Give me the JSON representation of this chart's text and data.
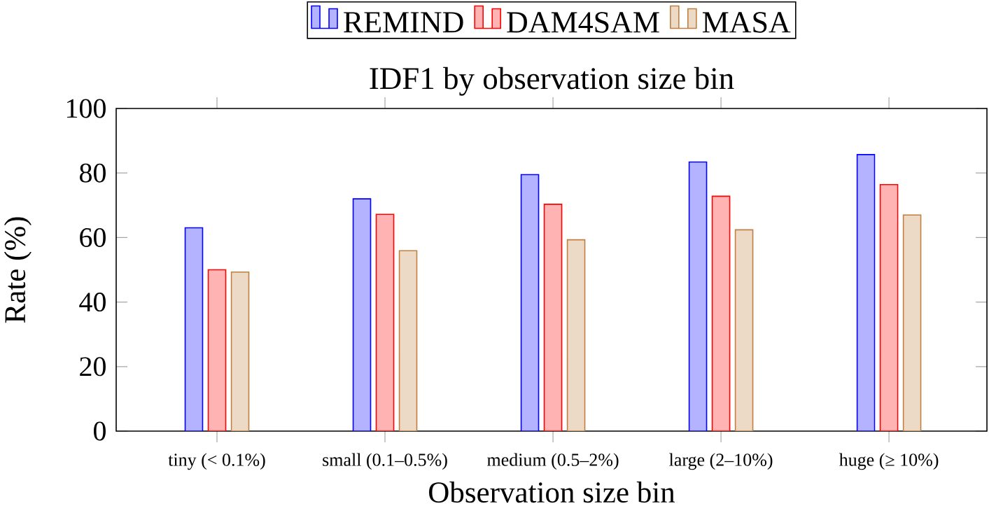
{
  "chart_data": {
    "type": "bar",
    "title": "IDF1 by observation size bin",
    "xlabel": "Observation size bin",
    "ylabel": "Rate (%)",
    "categories": [
      "tiny (< 0.1%)",
      "small (0.1–0.5%)",
      "medium (0.5–2%)",
      "large (2–10%)",
      "huge (≥ 10%)"
    ],
    "series": [
      {
        "name": "REMIND",
        "color": "#b3b3ff",
        "values": [
          63,
          72,
          79.5,
          83.4,
          85.7
        ]
      },
      {
        "name": "DAM4SAM",
        "color": "#ffb3b3",
        "values": [
          50,
          67.2,
          70.3,
          72.8,
          76.4
        ]
      },
      {
        "name": "MASA",
        "color": "#ecd9c6",
        "values": [
          49.3,
          55.9,
          59.3,
          62.4,
          67
        ]
      }
    ],
    "ylim": [
      0,
      100
    ],
    "yticks": [
      0,
      20,
      40,
      60,
      80,
      100
    ],
    "legend": "top"
  }
}
